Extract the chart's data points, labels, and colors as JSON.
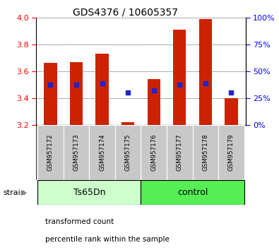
{
  "title": "GDS4376 / 10605357",
  "samples": [
    "GSM957172",
    "GSM957173",
    "GSM957174",
    "GSM957175",
    "GSM957176",
    "GSM957177",
    "GSM957178",
    "GSM957179"
  ],
  "bar_top": [
    3.66,
    3.67,
    3.73,
    3.22,
    3.54,
    3.91,
    3.99,
    3.4
  ],
  "bar_bottom": 3.2,
  "blue_marker_y": [
    3.5,
    3.5,
    3.51,
    3.44,
    3.46,
    3.5,
    3.51,
    3.44
  ],
  "ylim": [
    3.2,
    4.0
  ],
  "yticks_left": [
    3.2,
    3.4,
    3.6,
    3.8,
    4.0
  ],
  "yticks_right_vals": [
    0,
    25,
    50,
    75,
    100
  ],
  "bar_color": "#cc2200",
  "blue_color": "#2222cc",
  "group1_label": "Ts65Dn",
  "group2_label": "control",
  "group1_indices": [
    0,
    1,
    2,
    3
  ],
  "group2_indices": [
    4,
    5,
    6,
    7
  ],
  "group1_bg": "#ccffcc",
  "group2_bg": "#55ee55",
  "strain_label": "strain",
  "tick_bg": "#c8c8c8",
  "legend_entries": [
    "transformed count",
    "percentile rank within the sample"
  ],
  "legend_colors": [
    "#cc2200",
    "#2222cc"
  ],
  "bar_width": 0.5,
  "plot_bg": "#ffffff"
}
